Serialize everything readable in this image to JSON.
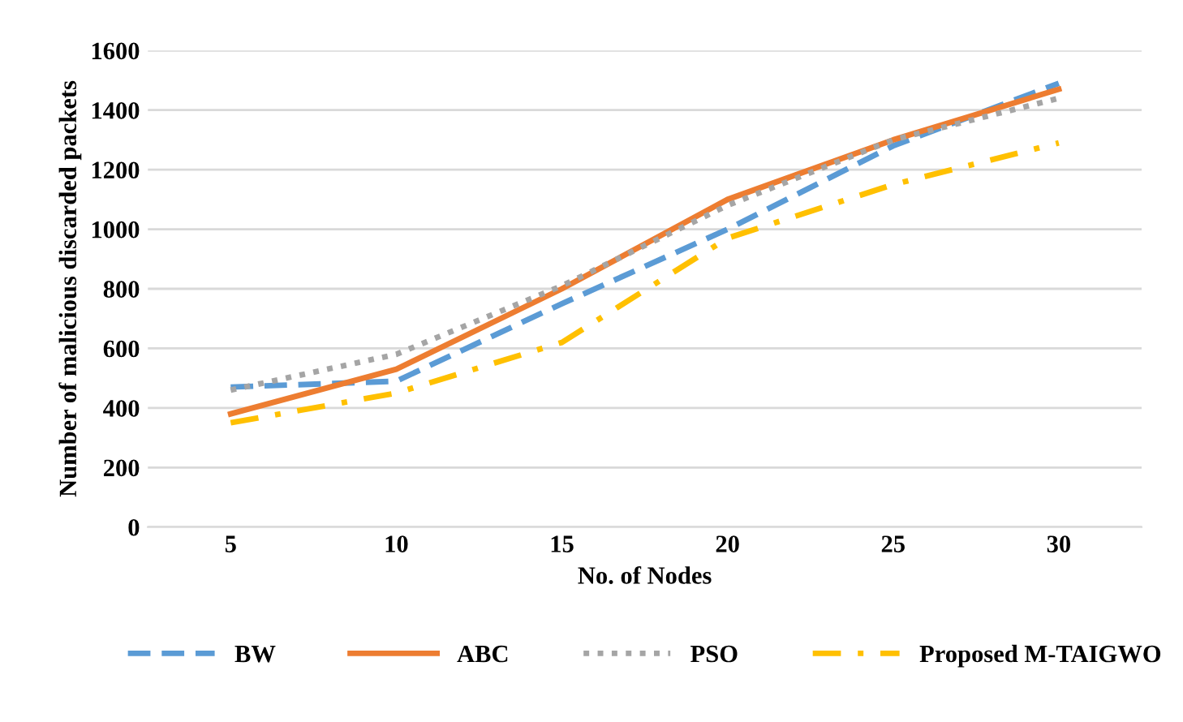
{
  "chart_data": {
    "type": "line",
    "xlabel": "No. of Nodes",
    "ylabel": "Number of malicious discarded packets",
    "categories": [
      "5",
      "10",
      "15",
      "20",
      "25",
      "30"
    ],
    "series": [
      {
        "name": "BW",
        "color": "#5b9bd5",
        "line_style": "dashed",
        "values": [
          470,
          490,
          750,
          1000,
          1280,
          1490
        ]
      },
      {
        "name": "ABC",
        "color": "#ed7d31",
        "line_style": "solid",
        "values": [
          380,
          530,
          800,
          1100,
          1300,
          1470
        ]
      },
      {
        "name": "PSO",
        "color": "#a5a5a5",
        "line_style": "dotted",
        "values": [
          460,
          580,
          810,
          1080,
          1300,
          1440
        ]
      },
      {
        "name": "Proposed M-TAIGWO",
        "color": "#ffc000",
        "line_style": "dashdot",
        "values": [
          350,
          450,
          620,
          970,
          1150,
          1290
        ]
      }
    ],
    "ylim": [
      0,
      1600
    ],
    "yticks": [
      0,
      200,
      400,
      600,
      800,
      1000,
      1200,
      1400,
      1600
    ],
    "grid": "y",
    "legend": "bottom",
    "marker": "none"
  }
}
